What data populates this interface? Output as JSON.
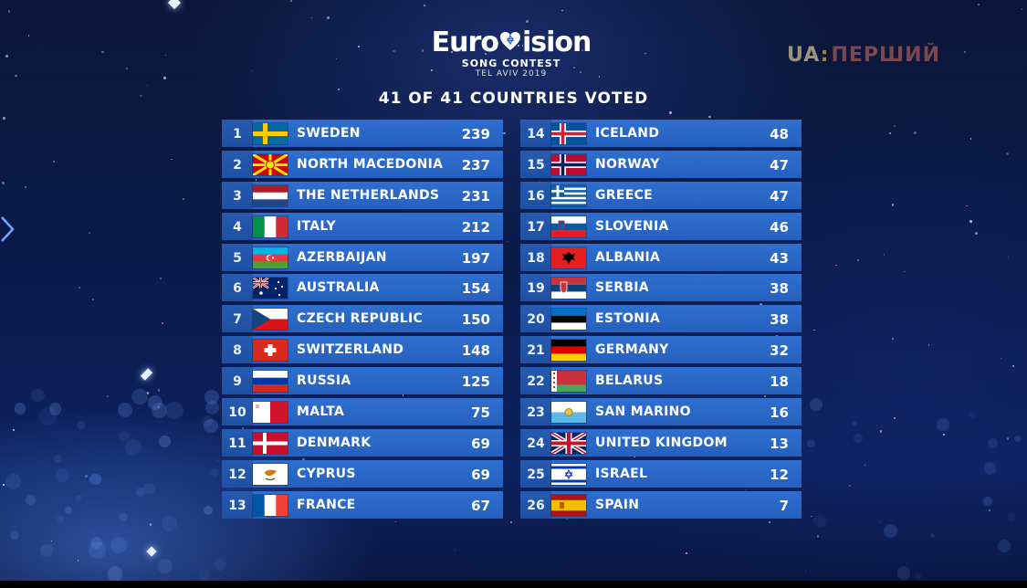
{
  "logo": {
    "word_left": "Euro",
    "word_right": "ision",
    "subtitle": "SONG CONTEST",
    "city": "TEL AVIV 2019"
  },
  "channel": {
    "prefix": "UA",
    "separator": ":",
    "name": "ПЕРШИЙ"
  },
  "headline": "41 OF 41 COUNTRIES VOTED",
  "colors": {
    "row": "#2f6fd0",
    "background": "#0a1a4a",
    "text": "#ffffff"
  },
  "left_column": [
    {
      "rank": "1",
      "country": "SWEDEN",
      "points": "239",
      "flag": "se"
    },
    {
      "rank": "2",
      "country": "NORTH MACEDONIA",
      "points": "237",
      "flag": "mk"
    },
    {
      "rank": "3",
      "country": "THE NETHERLANDS",
      "points": "231",
      "flag": "nl"
    },
    {
      "rank": "4",
      "country": "ITALY",
      "points": "212",
      "flag": "it"
    },
    {
      "rank": "5",
      "country": "AZERBAIJAN",
      "points": "197",
      "flag": "az"
    },
    {
      "rank": "6",
      "country": "AUSTRALIA",
      "points": "154",
      "flag": "au"
    },
    {
      "rank": "7",
      "country": "CZECH REPUBLIC",
      "points": "150",
      "flag": "cz"
    },
    {
      "rank": "8",
      "country": "SWITZERLAND",
      "points": "148",
      "flag": "ch"
    },
    {
      "rank": "9",
      "country": "RUSSIA",
      "points": "125",
      "flag": "ru"
    },
    {
      "rank": "10",
      "country": "MALTA",
      "points": "75",
      "flag": "mt"
    },
    {
      "rank": "11",
      "country": "DENMARK",
      "points": "69",
      "flag": "dk"
    },
    {
      "rank": "12",
      "country": "CYPRUS",
      "points": "69",
      "flag": "cy"
    },
    {
      "rank": "13",
      "country": "FRANCE",
      "points": "67",
      "flag": "fr"
    }
  ],
  "right_column": [
    {
      "rank": "14",
      "country": "ICELAND",
      "points": "48",
      "flag": "is"
    },
    {
      "rank": "15",
      "country": "NORWAY",
      "points": "47",
      "flag": "no"
    },
    {
      "rank": "16",
      "country": "GREECE",
      "points": "47",
      "flag": "gr"
    },
    {
      "rank": "17",
      "country": "SLOVENIA",
      "points": "46",
      "flag": "si"
    },
    {
      "rank": "18",
      "country": "ALBANIA",
      "points": "43",
      "flag": "al"
    },
    {
      "rank": "19",
      "country": "SERBIA",
      "points": "38",
      "flag": "rs"
    },
    {
      "rank": "20",
      "country": "ESTONIA",
      "points": "38",
      "flag": "ee"
    },
    {
      "rank": "21",
      "country": "GERMANY",
      "points": "32",
      "flag": "de"
    },
    {
      "rank": "22",
      "country": "BELARUS",
      "points": "18",
      "flag": "by"
    },
    {
      "rank": "23",
      "country": "SAN MARINO",
      "points": "16",
      "flag": "sm"
    },
    {
      "rank": "24",
      "country": "UNITED KINGDOM",
      "points": "13",
      "flag": "gb"
    },
    {
      "rank": "25",
      "country": "ISRAEL",
      "points": "12",
      "flag": "il"
    },
    {
      "rank": "26",
      "country": "SPAIN",
      "points": "7",
      "flag": "es"
    }
  ]
}
